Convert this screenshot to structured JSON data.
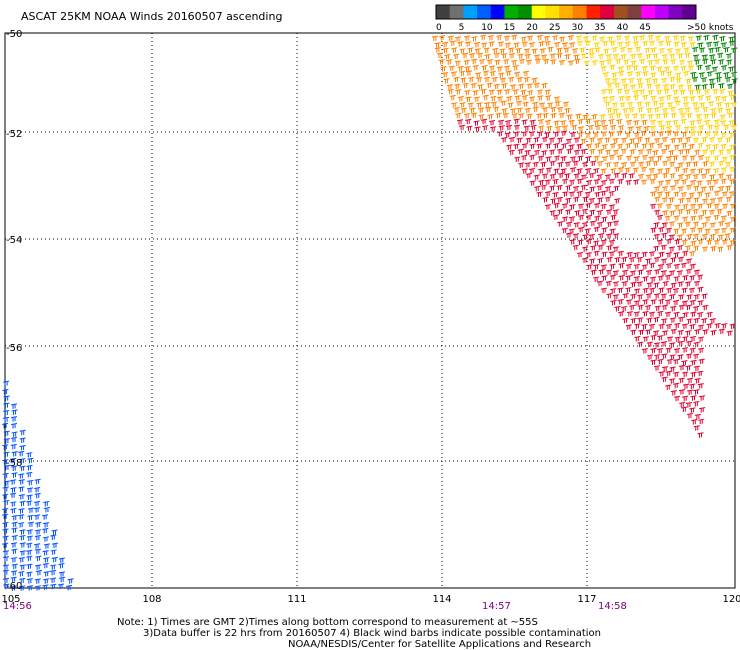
{
  "title": "ASCAT 25KM NOAA Winds 20160507 ascending",
  "legend": {
    "units": ">50 knots",
    "ticks": [
      "0",
      "5",
      "10",
      "15",
      "20",
      "25",
      "30",
      "35",
      "40",
      "45"
    ],
    "colors": [
      "#404040",
      "#707070",
      "#00a0ff",
      "#0060ff",
      "#0000ff",
      "#00b000",
      "#009000",
      "#ffff00",
      "#ffe000",
      "#ffb000",
      "#ff8000",
      "#ff2000",
      "#e00040",
      "#a05020",
      "#804040",
      "#ff00ff",
      "#c000ff",
      "#8000c0",
      "#600090"
    ]
  },
  "axes": {
    "lon_labels": [
      "105",
      "108",
      "111",
      "114",
      "117",
      "120"
    ],
    "lat_labels": [
      "-50",
      "-52",
      "-54",
      "-56",
      "-58",
      "-60"
    ]
  },
  "times": [
    "14:56",
    "14:57",
    "14:58"
  ],
  "notes": {
    "line1": "Note: 1) Times are GMT 2)Times along bottom correspond to measurement at ~55S",
    "line2": "3)Data buffer is 22 hrs from 20160507 4) Black wind barbs indicate possible contamination",
    "line3": "NOAA/NESDIS/Center for Satellite Applications and Research"
  },
  "swaths": {
    "yellow_band": {
      "color": "#ffd000",
      "speed_class": "20-25 knots"
    },
    "orange_band": {
      "color": "#ff8000",
      "speed_class": "25-30 knots"
    },
    "red_band": {
      "color": "#e00030",
      "speed_class": "30-35 knots"
    },
    "green_patch": {
      "color": "#008000",
      "speed_class": "15-20 knots"
    },
    "blue_swath": {
      "color": "#0050ff",
      "speed_class": "10-15 knots"
    }
  }
}
